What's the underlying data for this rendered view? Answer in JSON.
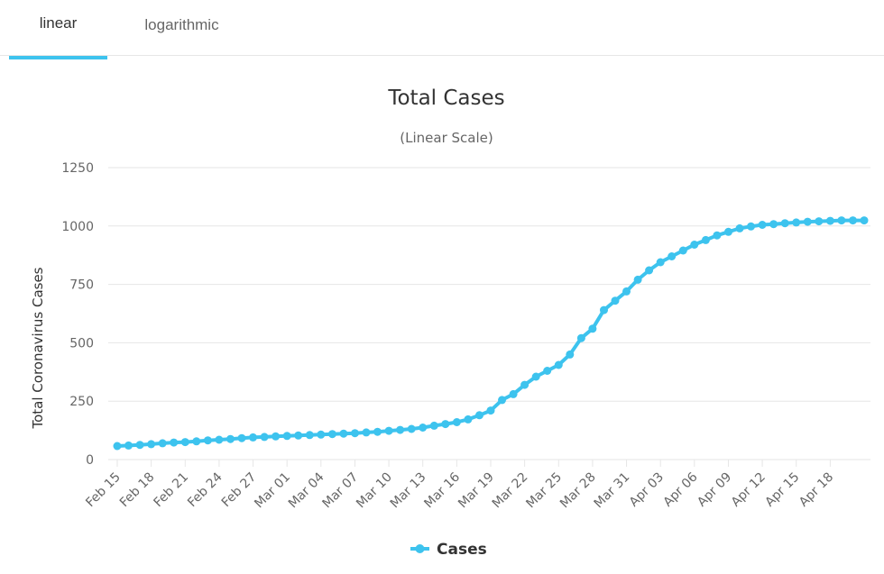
{
  "tabs": [
    {
      "label": "linear",
      "active": true
    },
    {
      "label": "logarithmic",
      "active": false
    }
  ],
  "colors": {
    "series": "#3dc3ee",
    "grid": "#e6e6e6",
    "text": "#666666",
    "title": "#333333",
    "tab_indicator": "#3dc3ee"
  },
  "chart_data": {
    "type": "line",
    "title": "Total Cases",
    "subtitle": "(Linear Scale)",
    "ylabel": "Total Coronavirus Cases",
    "xlabel": "",
    "ylim": [
      0,
      1250
    ],
    "yticks": [
      0,
      250,
      500,
      750,
      1000,
      1250
    ],
    "grid": true,
    "legend": "bottom-center",
    "x": [
      "Feb 15",
      "Feb 16",
      "Feb 17",
      "Feb 18",
      "Feb 19",
      "Feb 20",
      "Feb 21",
      "Feb 22",
      "Feb 23",
      "Feb 24",
      "Feb 25",
      "Feb 26",
      "Feb 27",
      "Feb 28",
      "Feb 29",
      "Mar 01",
      "Mar 02",
      "Mar 03",
      "Mar 04",
      "Mar 05",
      "Mar 06",
      "Mar 07",
      "Mar 08",
      "Mar 09",
      "Mar 10",
      "Mar 11",
      "Mar 12",
      "Mar 13",
      "Mar 14",
      "Mar 15",
      "Mar 16",
      "Mar 17",
      "Mar 18",
      "Mar 19",
      "Mar 20",
      "Mar 21",
      "Mar 22",
      "Mar 23",
      "Mar 24",
      "Mar 25",
      "Mar 26",
      "Mar 27",
      "Mar 28",
      "Mar 29",
      "Mar 30",
      "Mar 31",
      "Apr 01",
      "Apr 02",
      "Apr 03",
      "Apr 04",
      "Apr 05",
      "Apr 06",
      "Apr 07",
      "Apr 08",
      "Apr 09",
      "Apr 10",
      "Apr 11",
      "Apr 12",
      "Apr 13",
      "Apr 14",
      "Apr 15",
      "Apr 16",
      "Apr 17",
      "Apr 18",
      "Apr 19",
      "Apr 20",
      "Apr 21"
    ],
    "xtick_labels": [
      "Feb 15",
      "Feb 18",
      "Feb 21",
      "Feb 24",
      "Feb 27",
      "Mar 01",
      "Mar 04",
      "Mar 07",
      "Mar 10",
      "Mar 13",
      "Mar 16",
      "Mar 19",
      "Mar 22",
      "Mar 25",
      "Mar 28",
      "Mar 31",
      "Apr 03",
      "Apr 06",
      "Apr 09",
      "Apr 12",
      "Apr 15",
      "Apr 18"
    ],
    "series": [
      {
        "name": "Cases",
        "values": [
          58,
          60,
          63,
          66,
          70,
          73,
          75,
          78,
          82,
          85,
          88,
          92,
          95,
          97,
          99,
          101,
          103,
          105,
          107,
          109,
          111,
          113,
          116,
          119,
          123,
          127,
          131,
          137,
          145,
          152,
          160,
          172,
          190,
          210,
          255,
          280,
          320,
          355,
          380,
          405,
          450,
          520,
          560,
          640,
          680,
          720,
          770,
          810,
          845,
          870,
          895,
          920,
          940,
          960,
          975,
          990,
          998,
          1005,
          1008,
          1012,
          1015,
          1018,
          1020,
          1022,
          1024,
          1024,
          1024
        ]
      }
    ]
  }
}
